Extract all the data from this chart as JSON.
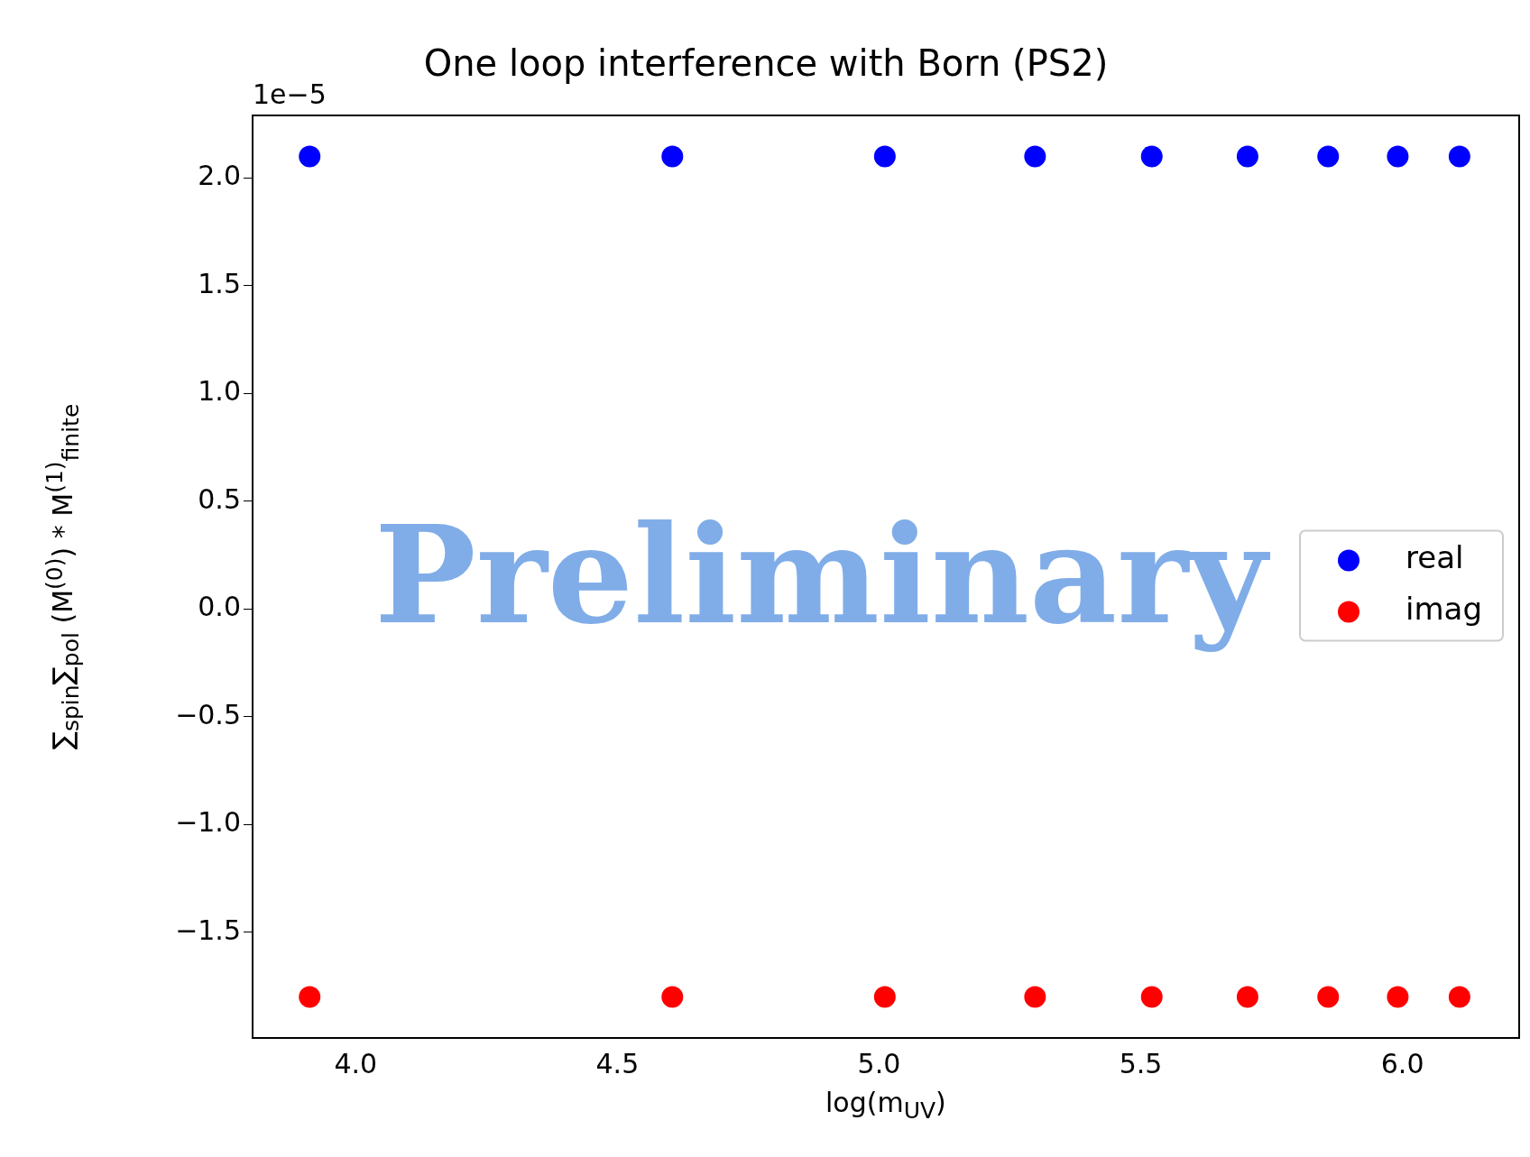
{
  "chart_data": {
    "type": "scatter",
    "title": "One loop interference with Born (PS2)",
    "xlabel": "log(m$_{UV}$)",
    "ylabel": "∑$_{spin}$∑$_{pol}$ (M$^{(0)}$) * M$^{(1)}$$_{finite}$",
    "annotations": [
      "1e−5",
      "Preliminary"
    ],
    "x": [
      3.912,
      4.605,
      5.011,
      5.298,
      5.521,
      5.704,
      5.858,
      5.991,
      6.109
    ],
    "series": [
      {
        "name": "real",
        "color": "#0000ff",
        "values": [
          2.1,
          2.1,
          2.1,
          2.1,
          2.1,
          2.1,
          2.1,
          2.1,
          2.1
        ]
      },
      {
        "name": "imag",
        "color": "#ff0000",
        "values": [
          -1.8,
          -1.8,
          -1.8,
          -1.8,
          -1.8,
          -1.8,
          -1.8,
          -1.8,
          -1.8
        ]
      }
    ],
    "xlim": [
      3.803,
      6.223
    ],
    "xticks": [
      {
        "value": 4,
        "label": "4.0"
      },
      4.5,
      {
        "value": 5,
        "label": "5.0"
      },
      5.5,
      {
        "value": 6,
        "label": "6.0"
      }
    ],
    "ylim": [
      -1.99,
      2.29
    ],
    "yticks": [
      {
        "value": -1.5,
        "label": "−1.5"
      },
      {
        "value": -1,
        "label": "−1.0"
      },
      {
        "value": -0.5,
        "label": "−0.5"
      },
      {
        "value": 0,
        "label": "0.0"
      },
      {
        "value": 0.5,
        "label": "0.5"
      },
      {
        "value": 1,
        "label": "1.0"
      },
      {
        "value": 1.5,
        "label": "1.5"
      },
      {
        "value": 2,
        "label": "2.0"
      }
    ],
    "grid": false,
    "legend": "right",
    "marker": "circle"
  }
}
